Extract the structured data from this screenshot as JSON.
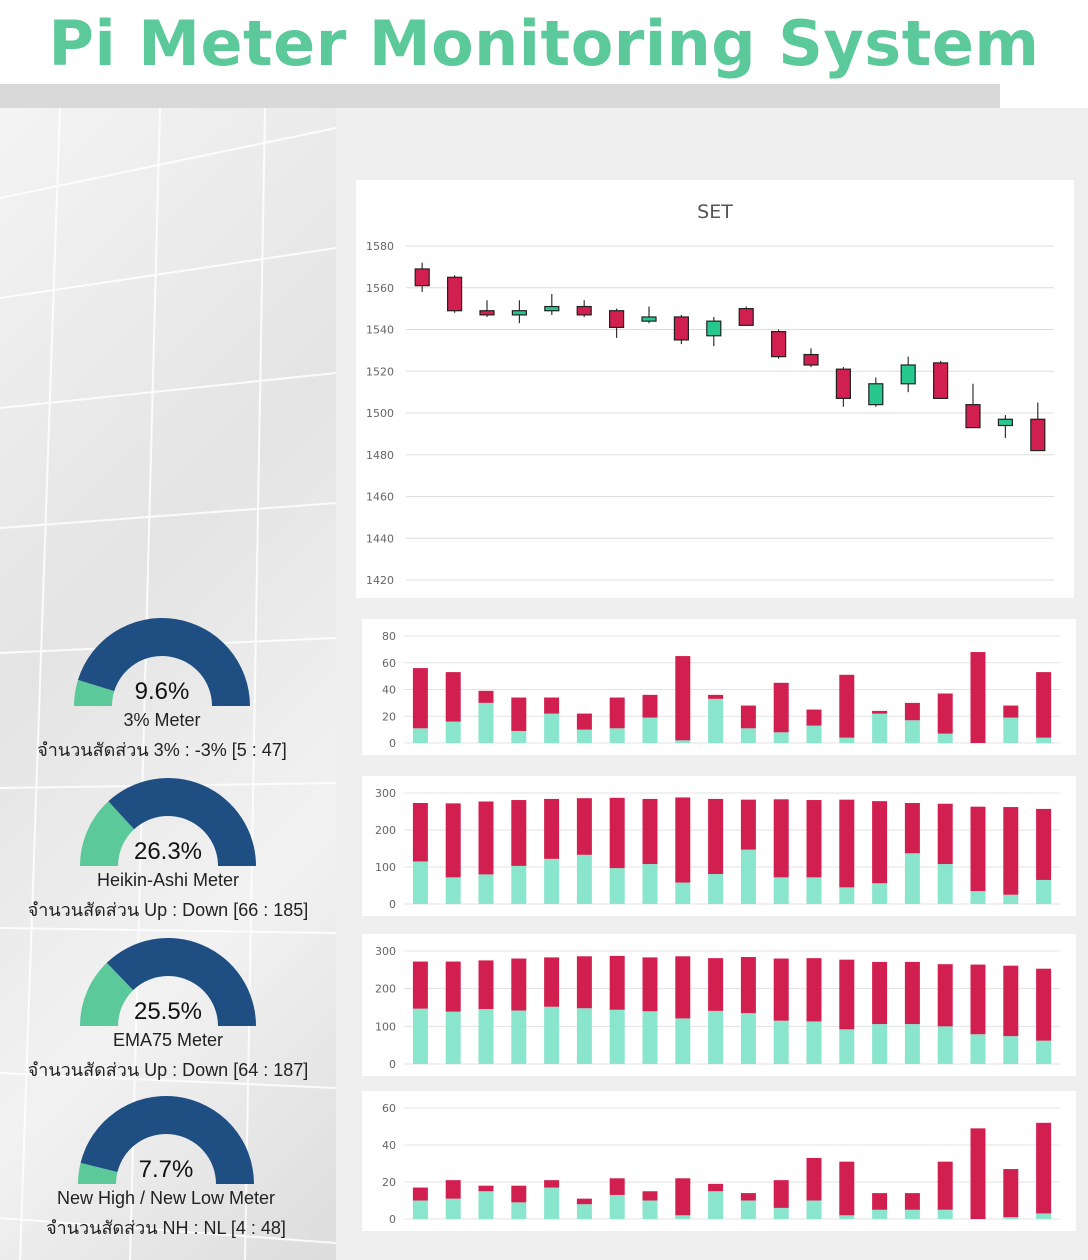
{
  "header": {
    "title": "Pi Meter Monitoring System"
  },
  "colors": {
    "up": "#27c790",
    "down": "#d1204f",
    "upBar": "#8ae5cd",
    "gaugeFill": "#5cc99a",
    "gaugeBg": "#1f4e82",
    "title": "#5cc99a"
  },
  "gauges": [
    {
      "value": "9.6%",
      "fraction": 0.096,
      "label": "3% Meter",
      "ratio": "จำนวนสัดส่วน 3% : -3% [5 : 47]"
    },
    {
      "value": "26.3%",
      "fraction": 0.263,
      "label": "Heikin-Ashi Meter",
      "ratio": "จำนวนสัดส่วน Up : Down [66 : 185]"
    },
    {
      "value": "25.5%",
      "fraction": 0.255,
      "label": "EMA75 Meter",
      "ratio": "จำนวนสัดส่วน Up : Down [64 : 187]"
    },
    {
      "value": "7.7%",
      "fraction": 0.077,
      "label": "New High / New Low Meter",
      "ratio": "จำนวนสัดส่วน NH : NL [4 : 48]"
    }
  ],
  "chart_data": [
    {
      "type": "candlestick",
      "title": "SET",
      "ylim": [
        1420,
        1580
      ],
      "yticks": [
        1580,
        1560,
        1540,
        1520,
        1500,
        1480,
        1460,
        1440,
        1420
      ],
      "grid": true,
      "ohlc": [
        [
          1569,
          1572,
          1558,
          1561
        ],
        [
          1565,
          1566,
          1548,
          1549
        ],
        [
          1549,
          1554,
          1546,
          1547
        ],
        [
          1547,
          1554,
          1543,
          1549
        ],
        [
          1549,
          1557,
          1547,
          1551
        ],
        [
          1551,
          1554,
          1546,
          1547
        ],
        [
          1549,
          1550,
          1536,
          1541
        ],
        [
          1544,
          1551,
          1543,
          1546
        ],
        [
          1546,
          1547,
          1533,
          1535
        ],
        [
          1537,
          1546,
          1532,
          1544
        ],
        [
          1550,
          1551,
          1542,
          1542
        ],
        [
          1539,
          1540,
          1526,
          1527
        ],
        [
          1528,
          1531,
          1522,
          1523
        ],
        [
          1521,
          1522,
          1503,
          1507
        ],
        [
          1504,
          1517,
          1503,
          1514
        ],
        [
          1514,
          1527,
          1510,
          1523
        ],
        [
          1524,
          1525,
          1507,
          1507
        ],
        [
          1504,
          1514,
          1493,
          1493
        ],
        [
          1494,
          1499,
          1488,
          1497
        ],
        [
          1497,
          1505,
          1482,
          1482
        ]
      ]
    },
    {
      "type": "bar",
      "stacked": true,
      "ylim": [
        0,
        80
      ],
      "yticks": [
        80,
        60,
        40,
        20,
        0
      ],
      "series": [
        {
          "values": [
            11,
            16,
            30,
            9,
            22,
            10,
            11,
            19,
            2,
            33,
            11,
            8,
            13,
            4,
            22,
            17,
            7,
            0,
            19,
            4
          ]
        },
        {
          "values": [
            45,
            37,
            9,
            25,
            12,
            12,
            23,
            17,
            63,
            3,
            17,
            37,
            12,
            47,
            2,
            13,
            30,
            68,
            9,
            49
          ]
        }
      ]
    },
    {
      "type": "bar",
      "stacked": true,
      "ylim": [
        0,
        300
      ],
      "yticks": [
        300,
        200,
        100,
        0
      ],
      "series": [
        {
          "values": [
            115,
            72,
            80,
            103,
            122,
            133,
            97,
            108,
            58,
            81,
            147,
            72,
            72,
            45,
            56,
            137,
            108,
            35,
            25,
            65
          ]
        },
        {
          "values": [
            158,
            200,
            197,
            178,
            162,
            153,
            190,
            176,
            230,
            203,
            135,
            211,
            209,
            237,
            222,
            136,
            163,
            228,
            237,
            192
          ]
        }
      ]
    },
    {
      "type": "bar",
      "stacked": true,
      "ylim": [
        0,
        300
      ],
      "yticks": [
        300,
        200,
        100,
        0
      ],
      "series": [
        {
          "values": [
            147,
            139,
            146,
            142,
            152,
            148,
            144,
            140,
            121,
            141,
            135,
            115,
            113,
            92,
            106,
            106,
            100,
            79,
            74,
            62
          ]
        },
        {
          "values": [
            125,
            133,
            129,
            138,
            131,
            138,
            143,
            143,
            165,
            140,
            149,
            165,
            168,
            185,
            165,
            165,
            165,
            185,
            187,
            191
          ]
        }
      ]
    },
    {
      "type": "bar",
      "stacked": true,
      "ylim": [
        0,
        60
      ],
      "yticks": [
        60,
        40,
        20,
        0
      ],
      "series": [
        {
          "values": [
            10,
            11,
            15,
            9,
            17,
            8,
            13,
            10,
            2,
            15,
            10,
            6,
            10,
            2,
            5,
            5,
            5,
            0,
            1,
            3
          ]
        },
        {
          "values": [
            7,
            10,
            3,
            9,
            4,
            3,
            9,
            5,
            20,
            4,
            4,
            15,
            23,
            29,
            9,
            9,
            26,
            49,
            26,
            49
          ]
        }
      ]
    }
  ]
}
